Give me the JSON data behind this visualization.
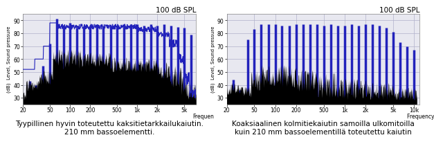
{
  "title": "100 dB SPL",
  "ylabel": "(dB)  Level, Sound pressure",
  "xlabel1": "Frequen",
  "xlabel2": "Frequency (Hz)",
  "ylim": [
    25,
    95
  ],
  "yticks": [
    30,
    40,
    50,
    60,
    70,
    80,
    90
  ],
  "xticks1": [
    20,
    50,
    100,
    200,
    500,
    1000,
    2000,
    5000
  ],
  "xtick_labels1": [
    "20",
    "50",
    "100",
    "200",
    "500",
    "1k",
    "2k",
    "5k"
  ],
  "xticks2": [
    20,
    50,
    100,
    200,
    500,
    1000,
    2000,
    5000,
    10000
  ],
  "xtick_labels2": [
    "20",
    "50",
    "100",
    "200",
    "500",
    "1k",
    "2k",
    "5k",
    "10k"
  ],
  "blue_color": "#2222bb",
  "black_color": "#000000",
  "bg_color": "#e8e8f0",
  "grid_color": "#b0b0cc",
  "caption1": "Tyypillinen hyvin toteutettu kaksitietarkkailukaiutin.\n210 mm bassoelementti.",
  "caption2": "Koaksiaalinen kolmitiekaiutin samoilla ulkomitoilla\nkuin 210 mm bassoelementillä toteutettu kaiutin",
  "caption_fontsize": 7.5,
  "bar_bottom": 25,
  "harmonic_freqs_1": [
    25,
    31.5,
    40,
    50,
    63,
    80,
    100,
    125,
    160,
    200,
    250,
    315,
    400,
    500,
    630,
    800,
    1000,
    1250,
    1600,
    2000,
    2500,
    3150,
    4000,
    5000,
    6300
  ],
  "harmonic_freqs_2": [
    25,
    31.5,
    40,
    50,
    63,
    80,
    100,
    125,
    160,
    200,
    250,
    315,
    400,
    500,
    630,
    800,
    1000,
    1250,
    1600,
    2000,
    2500,
    3150,
    4000,
    5000,
    6300,
    8000,
    10000
  ],
  "blue_heights_1": [
    43,
    40,
    55,
    72,
    91,
    85,
    88,
    84,
    85,
    86,
    86,
    85,
    86,
    86,
    86,
    87,
    87,
    86,
    87,
    86,
    87,
    86,
    85,
    84,
    79
  ],
  "blue_heights_2": [
    44,
    36,
    75,
    83,
    87,
    87,
    87,
    86,
    86,
    87,
    87,
    87,
    87,
    86,
    87,
    86,
    86,
    87,
    86,
    87,
    87,
    86,
    84,
    81,
    73,
    70,
    67
  ]
}
